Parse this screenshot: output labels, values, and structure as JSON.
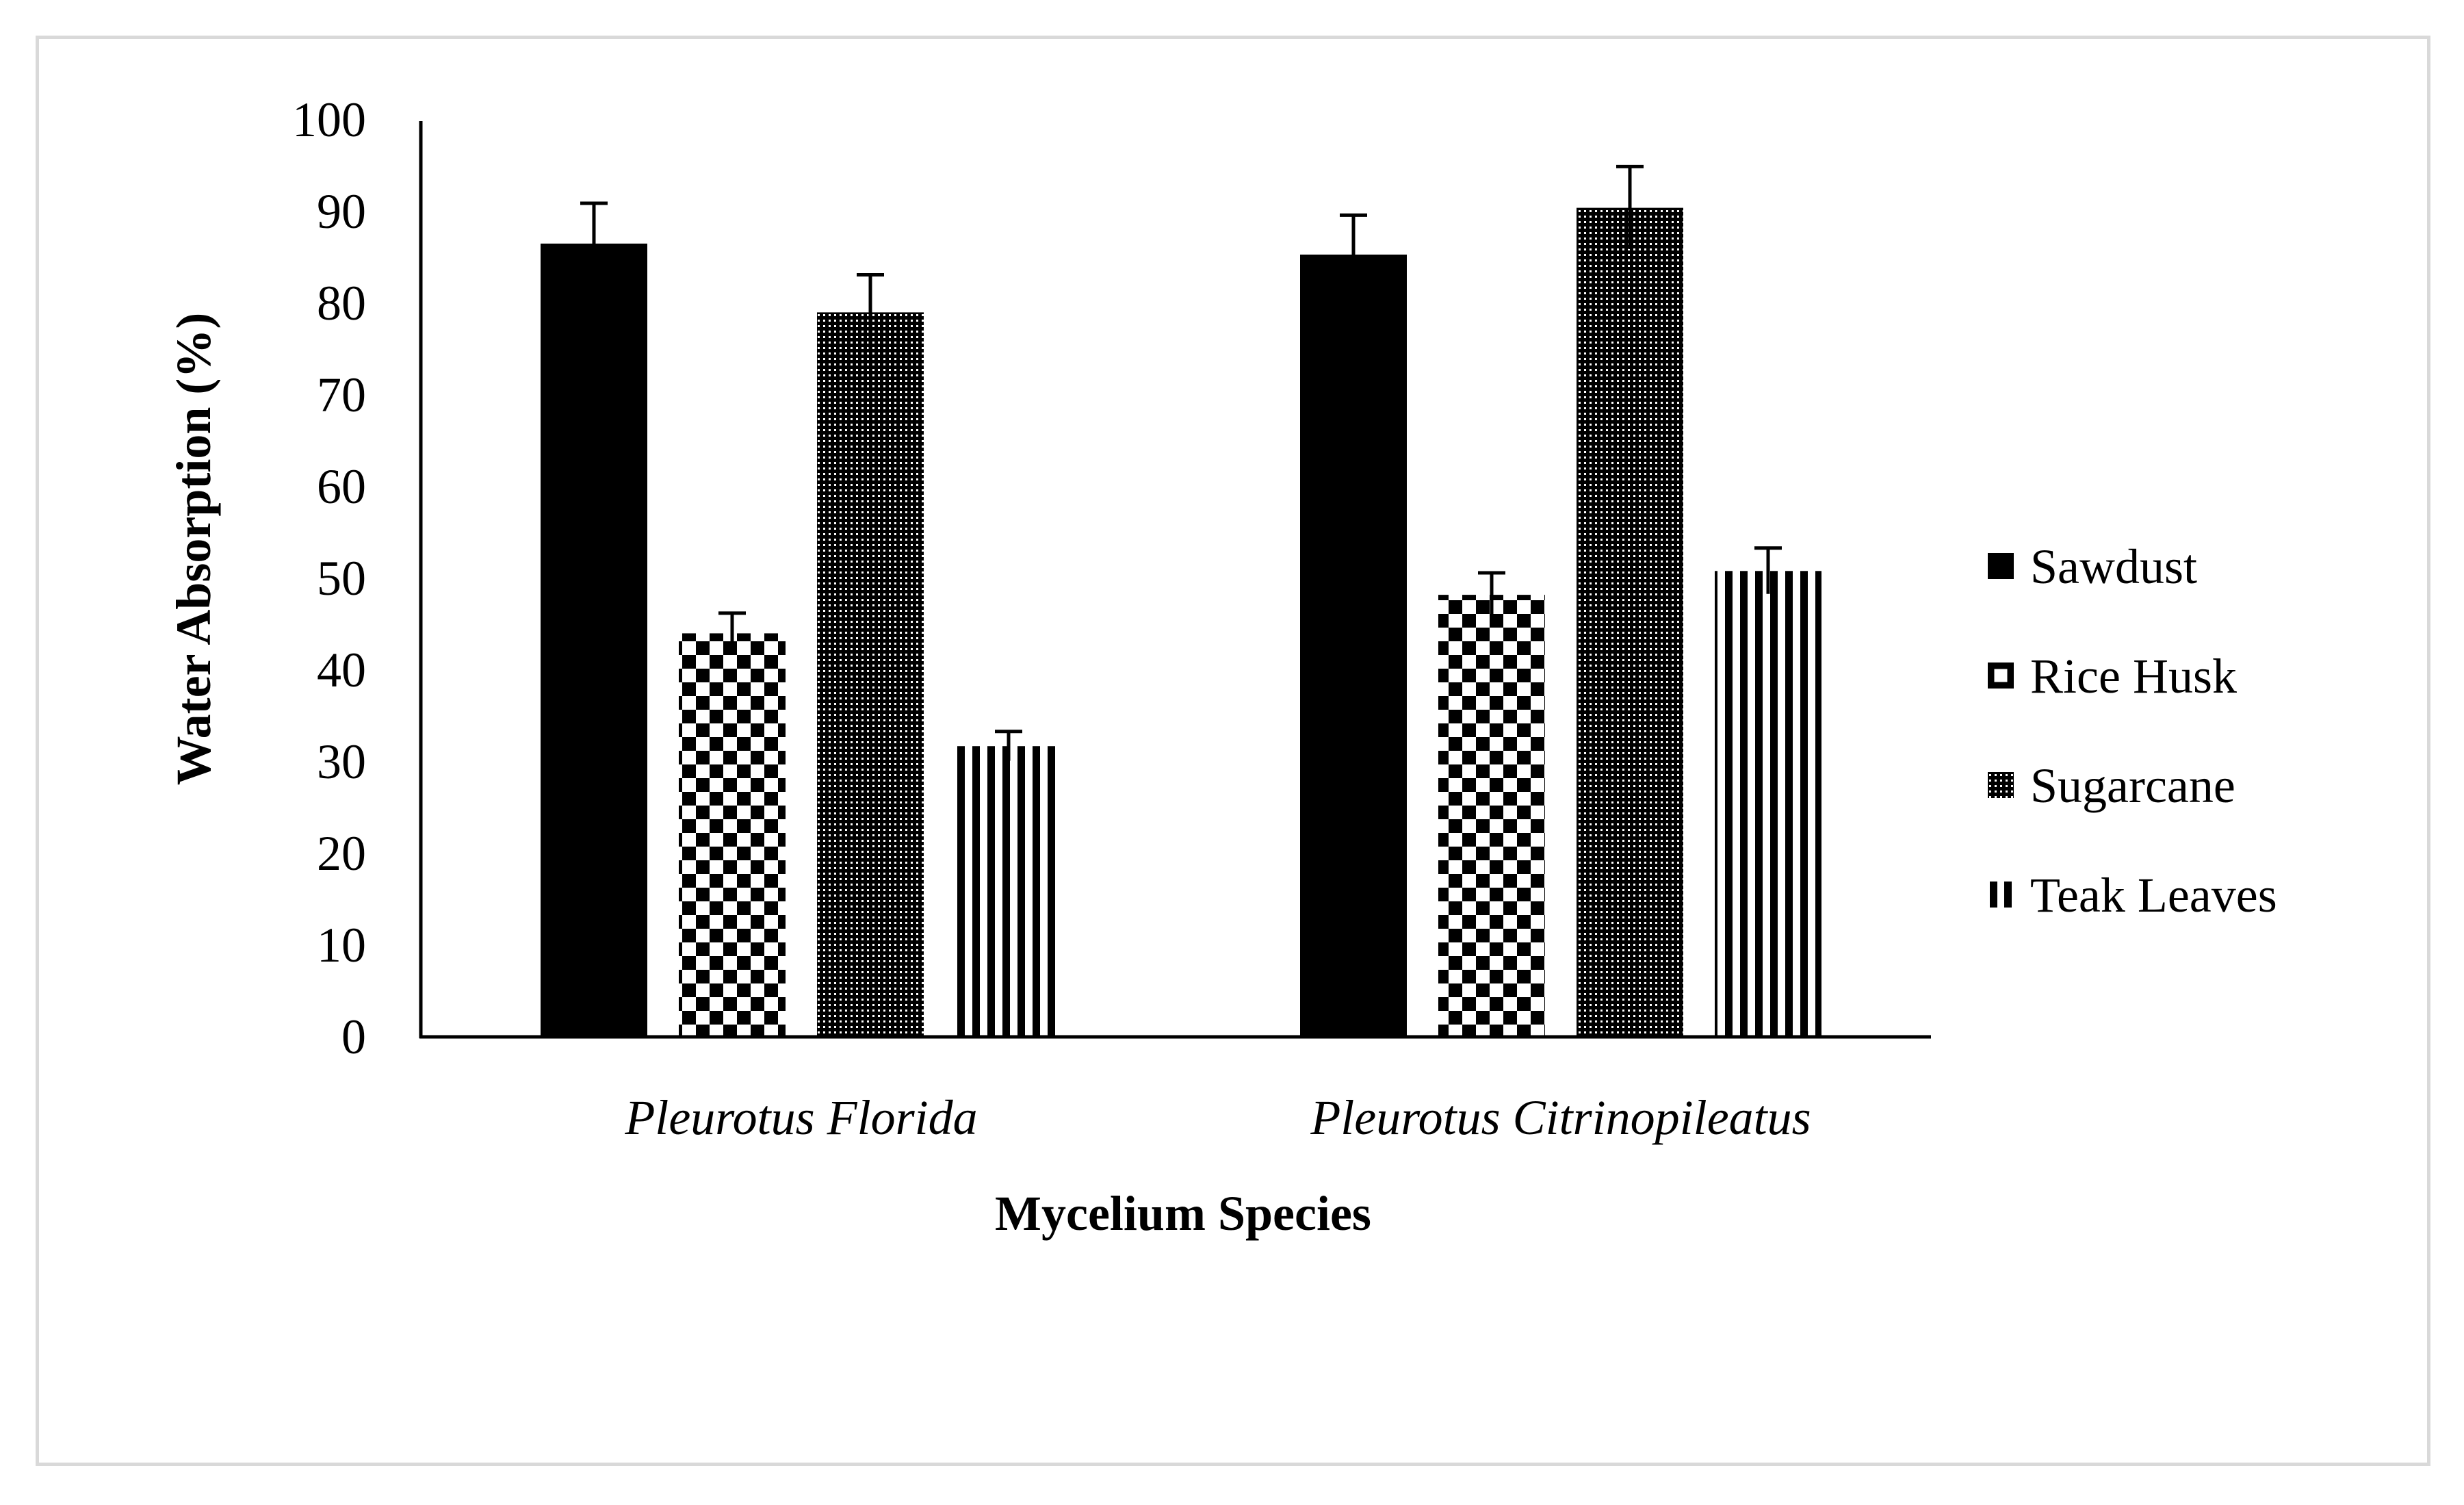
{
  "chart_data": {
    "type": "bar",
    "title": "",
    "xlabel": "Mycelium Species",
    "ylabel": "Water Absorption (%)",
    "ylim": [
      0,
      100
    ],
    "yticks": [
      0,
      10,
      20,
      30,
      40,
      50,
      60,
      70,
      80,
      90,
      100
    ],
    "ytick_labels": [
      "0",
      "10",
      "20",
      "30",
      "40",
      "50",
      "60",
      "70",
      "80",
      "90",
      "100"
    ],
    "categories": [
      "Pleurotus Florida",
      "Pleurotus Citrinopileatus"
    ],
    "series": [
      {
        "name": "Sawdust",
        "values": [
          86.5,
          85.3
        ],
        "errors": [
          4.4,
          4.3
        ],
        "pattern": "solid",
        "color": "#000000"
      },
      {
        "name": "Rice Husk",
        "values": [
          44.0,
          48.2
        ],
        "errors": [
          2.2,
          2.4
        ],
        "pattern": "checker",
        "color": "#000000"
      },
      {
        "name": "Sugarcane",
        "values": [
          79.0,
          90.4
        ],
        "errors": [
          4.1,
          4.5
        ],
        "pattern": "dense-dot",
        "color": "#000000"
      },
      {
        "name": "Teak Leaves",
        "values": [
          31.7,
          50.8
        ],
        "errors": [
          1.6,
          2.5
        ],
        "pattern": "vertical",
        "color": "#000000"
      }
    ],
    "grid": false,
    "legend_position": "right"
  }
}
